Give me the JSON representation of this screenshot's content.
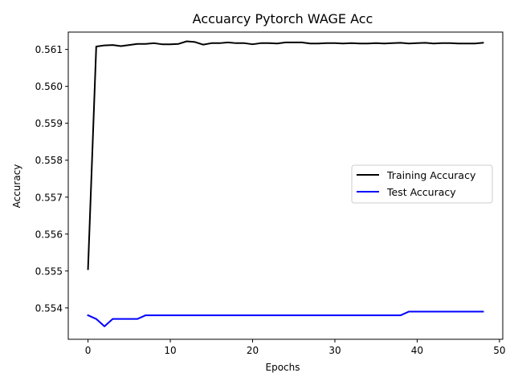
{
  "chart_data": {
    "type": "line",
    "title": "Accuarcy Pytorch WAGE Acc",
    "xlabel": "Epochs",
    "ylabel": "Accuracy",
    "xlim": [
      -2.4,
      50.4
    ],
    "ylim": [
      0.55315,
      0.56147
    ],
    "xticks": [
      0,
      10,
      20,
      30,
      40,
      50
    ],
    "yticks": [
      0.554,
      0.555,
      0.556,
      0.557,
      0.558,
      0.559,
      0.56,
      0.561
    ],
    "ytick_labels": [
      "0.554",
      "0.555",
      "0.556",
      "0.557",
      "0.558",
      "0.559",
      "0.560",
      "0.561"
    ],
    "grid": false,
    "legend_position": "center-right",
    "x": [
      0,
      1,
      2,
      3,
      4,
      5,
      6,
      7,
      8,
      9,
      10,
      11,
      12,
      13,
      14,
      15,
      16,
      17,
      18,
      19,
      20,
      21,
      22,
      23,
      24,
      25,
      26,
      27,
      28,
      29,
      30,
      31,
      32,
      33,
      34,
      35,
      36,
      37,
      38,
      39,
      40,
      41,
      42,
      43,
      44,
      45,
      46,
      47,
      48
    ],
    "series": [
      {
        "name": "Training Accuracy",
        "color": "#000000",
        "values": [
          0.55505,
          0.56108,
          0.56111,
          0.56112,
          0.56109,
          0.56112,
          0.56115,
          0.56115,
          0.56117,
          0.56114,
          0.56114,
          0.56115,
          0.56122,
          0.5612,
          0.56113,
          0.56117,
          0.56117,
          0.56119,
          0.56117,
          0.56117,
          0.56114,
          0.56117,
          0.56117,
          0.56116,
          0.56119,
          0.56119,
          0.56119,
          0.56116,
          0.56116,
          0.56117,
          0.56117,
          0.56116,
          0.56117,
          0.56116,
          0.56116,
          0.56117,
          0.56116,
          0.56117,
          0.56118,
          0.56116,
          0.56117,
          0.56118,
          0.56116,
          0.56117,
          0.56117,
          0.56116,
          0.56116,
          0.56116,
          0.56118
        ]
      },
      {
        "name": "Test Accuracy",
        "color": "#0000ff",
        "values": [
          0.5538,
          0.5537,
          0.5535,
          0.5537,
          0.5537,
          0.5537,
          0.5537,
          0.5538,
          0.5538,
          0.5538,
          0.5538,
          0.5538,
          0.5538,
          0.5538,
          0.5538,
          0.5538,
          0.5538,
          0.5538,
          0.5538,
          0.5538,
          0.5538,
          0.5538,
          0.5538,
          0.5538,
          0.5538,
          0.5538,
          0.5538,
          0.5538,
          0.5538,
          0.5538,
          0.5538,
          0.5538,
          0.5538,
          0.5538,
          0.5538,
          0.5538,
          0.5538,
          0.5538,
          0.5538,
          0.5539,
          0.5539,
          0.5539,
          0.5539,
          0.5539,
          0.5539,
          0.5539,
          0.5539,
          0.5539,
          0.5539
        ]
      }
    ]
  }
}
